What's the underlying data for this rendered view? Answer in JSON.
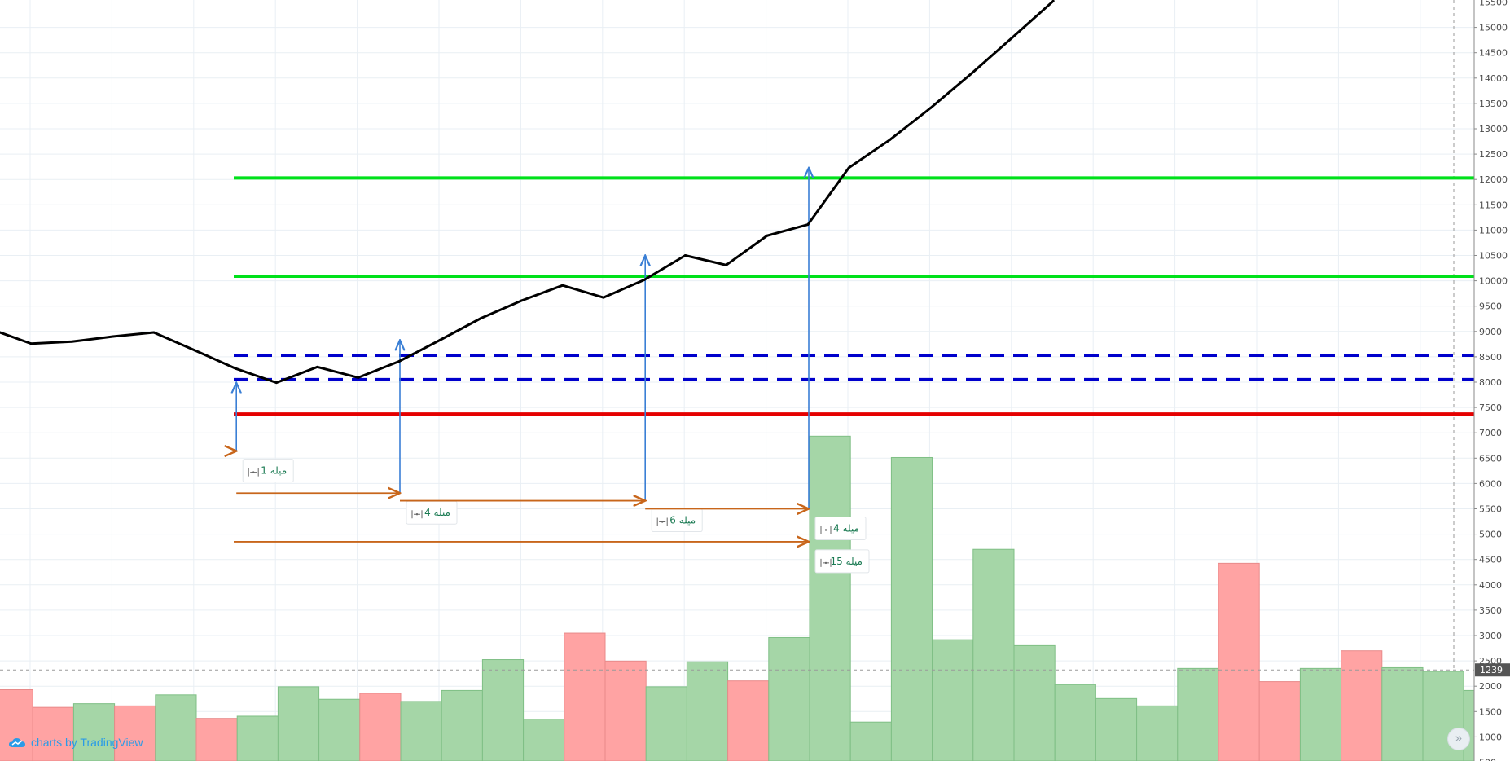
{
  "chart_data": {
    "type": "line",
    "title": "",
    "xlabel": "",
    "ylabel": "",
    "ylim": [
      500,
      15500
    ],
    "price_axis_ticks": [
      15500,
      15000,
      14500,
      14000,
      13500,
      13000,
      12500,
      12000,
      11500,
      11000,
      10500,
      10000,
      9500,
      9000,
      8500,
      8000,
      7500,
      7000,
      6500,
      6000,
      5500,
      5000,
      4500,
      4000,
      3500,
      3000,
      2500,
      2000,
      1500,
      1000,
      500
    ],
    "x": [
      0,
      1,
      2,
      3,
      4,
      5,
      6,
      7,
      8,
      9,
      10,
      11,
      12,
      13,
      14,
      15,
      16,
      17,
      18,
      19,
      20,
      21,
      22,
      23,
      24,
      25,
      26
    ],
    "series": [
      {
        "values": [
          9050,
          8760,
          8800,
          8900,
          8980,
          8630,
          8270,
          7990,
          8300,
          8090,
          8410,
          8830,
          9260,
          9610,
          9910,
          9670,
          10020,
          10500,
          10310,
          10890,
          11110,
          12230,
          12780,
          13410,
          14090,
          14800,
          15520
        ],
        "color": "#000000"
      }
    ],
    "volume": {
      "values": [
        970,
        730,
        780,
        750,
        900,
        580,
        610,
        1010,
        840,
        920,
        810,
        960,
        1380,
        570,
        1740,
        1360,
        1010,
        1350,
        1090,
        1680,
        4420,
        530,
        4130,
        1650,
        2880,
        1570,
        1040,
        850,
        750,
        1260,
        2690,
        1080,
        1260,
        1500,
        1270,
        1220,
        960
      ],
      "up_down": [
        "down",
        "down",
        "up",
        "down",
        "up",
        "down",
        "up",
        "up",
        "up",
        "down",
        "up",
        "up",
        "up",
        "up",
        "down",
        "down",
        "up",
        "up",
        "down",
        "up",
        "up",
        "up",
        "up",
        "up",
        "up",
        "up",
        "up",
        "up",
        "up",
        "up",
        "down",
        "down",
        "up",
        "down",
        "up",
        "up",
        "up"
      ],
      "up_color": "#a5d6a7",
      "down_color": "#ffa3a3",
      "current_marker": "1239",
      "current_value": 1239
    },
    "horizontal_levels": [
      {
        "value": 12030,
        "color": "#00e11a",
        "style": "solid"
      },
      {
        "value": 10090,
        "color": "#00e11a",
        "style": "solid"
      },
      {
        "value": 8530,
        "color": "#0000cc",
        "style": "dashed"
      },
      {
        "value": 8050,
        "color": "#0000cc",
        "style": "dashed"
      },
      {
        "value": 7370,
        "color": "#e50000",
        "style": "solid"
      }
    ],
    "annotations": [
      {
        "type": "bars-range",
        "label": "1 میله",
        "from_x": 5,
        "to_x": 6,
        "y": 6640
      },
      {
        "type": "bars-range",
        "label": "4 میله",
        "from_x": 6,
        "to_x": 10,
        "y": 5810
      },
      {
        "type": "bars-range",
        "label": "6 میله",
        "from_x": 10,
        "to_x": 16,
        "y": 5660
      },
      {
        "type": "bars-range",
        "label": "4 میله",
        "from_x": 16,
        "to_x": 20,
        "y": 5500
      },
      {
        "type": "bars-range",
        "label": "15 میله",
        "from_x": 5,
        "to_x": 20,
        "y": 4850
      }
    ],
    "vertical_arrows": [
      {
        "x": 6,
        "from_y": 6640,
        "to_y": 7990
      },
      {
        "x": 10,
        "from_y": 5810,
        "to_y": 8830
      },
      {
        "x": 16,
        "from_y": 5660,
        "to_y": 10500
      },
      {
        "x": 20,
        "from_y": 5500,
        "to_y": 12230
      }
    ],
    "grid": true,
    "colors": {
      "grid": "#e9eff4",
      "axis_text": "#4a4a4a",
      "range_arrow": "#c8661b",
      "vertical_arrow": "#3a7fd5",
      "label_text": "#1a7a52"
    }
  },
  "watermark": {
    "text": "charts by TradingView",
    "icon": "tradingview-cloud-icon"
  },
  "scroll_button": {
    "icon": "double-chevron-right-icon",
    "glyph": "»"
  }
}
